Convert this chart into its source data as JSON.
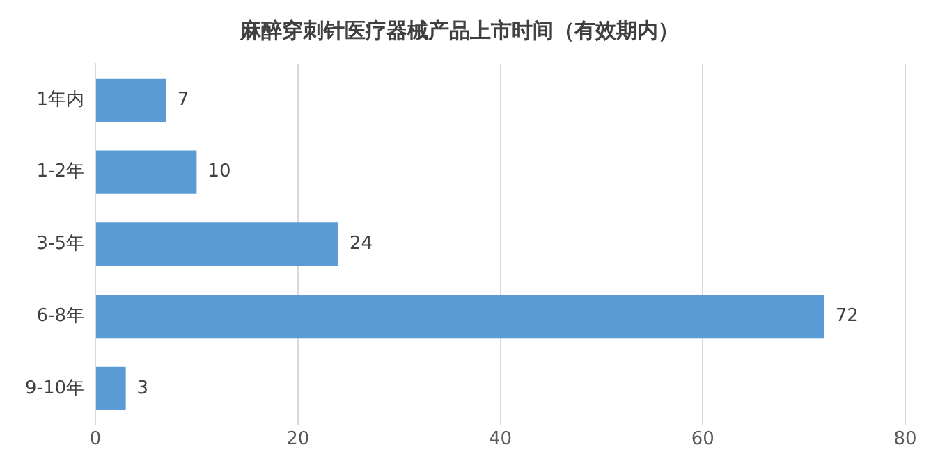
{
  "chart_data": {
    "type": "bar",
    "orientation": "horizontal",
    "title": "麻醉穿刺针医疗器械产品上市时间（有效期内）",
    "categories": [
      "1年内",
      "1-2年",
      "3-5年",
      "6-8年",
      "9-10年"
    ],
    "values": [
      7,
      10,
      24,
      72,
      3
    ],
    "color": "#5b9bd5",
    "xlim": [
      0,
      80
    ],
    "xticks": [
      0,
      20,
      40,
      60,
      80
    ],
    "grid": "x",
    "data_labels": true,
    "legend": false
  }
}
